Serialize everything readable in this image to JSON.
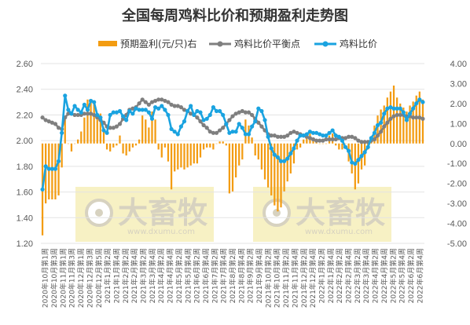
{
  "chart_data": {
    "type": "bar+line",
    "title": "全国每周鸡料比价和预期盈利走势图",
    "legend": {
      "bar_name": "预期盈利(元/只)右",
      "line_avg_name": "鸡料比价平衡点",
      "line_ratio_name": "鸡料比价",
      "placement": "top"
    },
    "left_axis": {
      "min": 1.2,
      "max": 2.6,
      "step": 0.2,
      "tick_labels": [
        "1.20",
        "1.40",
        "1.60",
        "1.80",
        "2.00",
        "2.20",
        "2.40",
        "2.60"
      ]
    },
    "right_axis": {
      "min": -5,
      "max": 4,
      "step": 1,
      "tick_labels": [
        "-5.00",
        "-4.00",
        "-3.00",
        "-2.00",
        "-1.00",
        "0.00",
        "1.00",
        "2.00",
        "3.00",
        "4.00"
      ]
    },
    "categories": [
      "2020年10月第1周",
      "2020年10月第3周",
      "2020年11月第1周",
      "2020年11月第3周",
      "2020年12月第1周",
      "2020年12月第3周",
      "2020年12月第5周",
      "2021年1月第2周",
      "2021年1月第4周",
      "2021年2月第2周",
      "2021年2月第4周",
      "2021年3月第2周",
      "2021年3月第4周",
      "2021年4月第2周",
      "2021年4月第4周",
      "2021年5月第2周",
      "2021年5月第4周",
      "2021年6月第2周",
      "2021年6月第4周",
      "2021年7月第2周",
      "2021年7月第4周",
      "2021年8月第2周",
      "2021年8月第4周",
      "2021年9月第2周",
      "2021年9月第4周",
      "2021年10月第2周",
      "2021年10月第4周",
      "2021年11月第2周",
      "2021年11月第4周",
      "2021年12月第2周",
      "2021年12月第4周",
      "2022年1月第2周",
      "2022年1月第4周",
      "2022年2月第2周",
      "2022年2月第4周",
      "2022年3月第2周",
      "2022年3月第4周",
      "2022年4月第2周",
      "2022年4月第4周",
      "2022年5月第2周",
      "2022年5月第4周",
      "2022年6月第2周",
      "2022年6月第4周"
    ],
    "ratio": [
      1.62,
      1.8,
      1.78,
      1.78,
      1.78,
      1.84,
      2.06,
      2.35,
      2.24,
      2.21,
      2.27,
      2.24,
      2.22,
      2.28,
      2.24,
      2.31,
      2.3,
      2.2,
      2.18,
      2.08,
      2.06,
      2.2,
      2.22,
      2.22,
      2.23,
      2.19,
      2.16,
      2.23,
      2.21,
      2.25,
      2.24,
      2.24,
      2.24,
      2.22,
      2.17,
      2.26,
      2.25,
      2.27,
      2.24,
      2.2,
      2.09,
      2.07,
      2.05,
      2.11,
      2.15,
      2.23,
      2.27,
      2.2,
      2.23,
      2.22,
      2.16,
      2.17,
      2.2,
      2.26,
      2.23,
      2.23,
      2.2,
      2.13,
      2.06,
      2.07,
      2.07,
      2.13,
      2.1,
      2.05,
      2.05,
      2.11,
      2.15,
      2.25,
      2.23,
      2.16,
      2.03,
      1.94,
      1.89,
      1.87,
      1.84,
      1.84,
      1.86,
      1.9,
      1.94,
      2.0,
      2.04,
      2.04,
      2.05,
      2.07,
      2.06,
      2.06,
      2.05,
      2.04,
      2.04,
      2.06,
      2.08,
      2.04,
      2.03,
      2.0,
      1.95,
      1.92,
      1.83,
      1.82,
      1.85,
      1.88,
      1.91,
      1.95,
      2.02,
      2.06,
      2.12,
      2.14,
      2.21,
      2.25,
      2.26,
      2.25,
      2.25,
      2.25,
      2.22,
      2.16,
      2.21,
      2.25,
      2.29,
      2.32,
      2.3
    ],
    "avg": [
      2.18,
      2.16,
      2.15,
      2.14,
      2.13,
      2.1,
      2.09,
      2.18,
      2.21,
      2.21,
      2.2,
      2.2,
      2.2,
      2.21,
      2.21,
      2.21,
      2.2,
      2.18,
      2.16,
      2.14,
      2.11,
      2.1,
      2.1,
      2.11,
      2.13,
      2.17,
      2.2,
      2.24,
      2.25,
      2.26,
      2.29,
      2.32,
      2.3,
      2.28,
      2.3,
      2.31,
      2.32,
      2.32,
      2.31,
      2.3,
      2.28,
      2.27,
      2.27,
      2.26,
      2.24,
      2.23,
      2.21,
      2.2,
      2.18,
      2.15,
      2.12,
      2.1,
      2.07,
      2.06,
      2.06,
      2.08,
      2.1,
      2.13,
      2.16,
      2.19,
      2.21,
      2.22,
      2.23,
      2.22,
      2.22,
      2.2,
      2.17,
      2.14,
      2.11,
      2.08,
      2.05,
      2.04,
      2.04,
      2.03,
      2.03,
      2.03,
      2.04,
      2.06,
      2.07,
      2.06,
      2.05,
      2.04,
      2.03,
      2.02,
      2.01,
      2.0,
      2.0,
      2.0,
      2.01,
      2.01,
      2.01,
      2.01,
      2.02,
      2.02,
      2.02,
      2.03,
      2.03,
      2.02,
      2.0,
      1.99,
      1.99,
      1.99,
      2.0,
      2.01,
      2.04,
      2.07,
      2.11,
      2.14,
      2.17,
      2.19,
      2.2,
      2.2,
      2.2,
      2.19,
      2.19,
      2.18,
      2.18,
      2.18,
      2.17
    ],
    "profit": [
      -4.6,
      -3.0,
      -2.8,
      -2.8,
      -2.8,
      -2.6,
      -1.2,
      1.2,
      0.0,
      -0.4,
      0.0,
      0.2,
      0.6,
      1.3,
      2.2,
      2.2,
      2.0,
      1.2,
      1.5,
      0.8,
      -0.3,
      -0.4,
      -0.2,
      -0.1,
      0.4,
      -0.5,
      -0.6,
      -0.4,
      -0.2,
      -0.1,
      0.2,
      1.4,
      1.2,
      0.8,
      1.6,
      1.2,
      -0.3,
      -0.7,
      -0.2,
      -0.9,
      -2.3,
      -1.4,
      -1.3,
      -1.2,
      -1.3,
      -1.2,
      -1.1,
      -1.0,
      -1.0,
      -0.7,
      -0.3,
      -0.2,
      -0.2,
      -0.3,
      0.0,
      0.1,
      0.1,
      -0.1,
      -2.5,
      -2.4,
      -1.7,
      -1.1,
      -0.8,
      1.2,
      0.9,
      0.3,
      -0.6,
      -0.8,
      -1.3,
      -1.8,
      -2.2,
      -2.6,
      -3.1,
      -3.4,
      -3.2,
      -2.4,
      -1.9,
      -1.5,
      -1.0,
      -0.3,
      -0.2,
      0.2,
      0.3,
      0.5,
      0.3,
      0.2,
      0.0,
      0.0,
      0.0,
      0.4,
      0.5,
      -0.1,
      -0.3,
      -0.3,
      0.0,
      -0.9,
      -1.5,
      -2.3,
      -2.0,
      -1.3,
      -1.1,
      -0.3,
      0.1,
      0.9,
      1.4,
      1.7,
      1.9,
      2.3,
      2.6,
      2.9,
      2.3,
      2.0,
      1.8,
      1.6,
      1.9,
      2.1,
      2.4,
      2.6,
      2.2
    ]
  },
  "colors": {
    "bar": "#f39c12",
    "avg_line": "#7f7f7f",
    "ratio_line": "#1aa3e0",
    "axis_text": "#595959",
    "grid": "#e3e3e3"
  },
  "watermark": {
    "brand": "大畜牧",
    "url": "www.dxumu.com"
  }
}
